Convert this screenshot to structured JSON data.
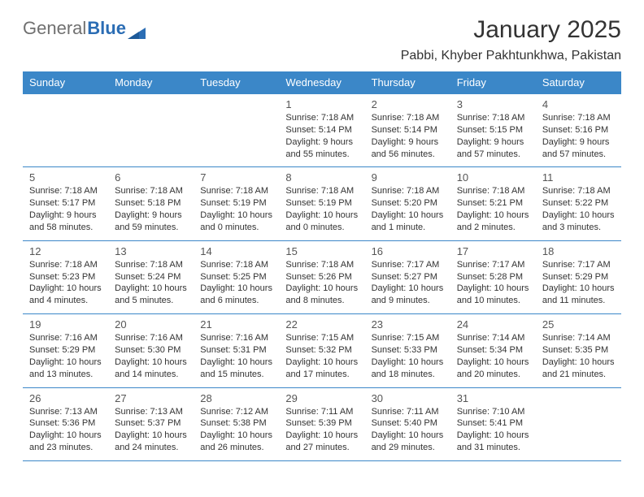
{
  "logo": {
    "text_left": "General",
    "text_right": "Blue"
  },
  "title": "January 2025",
  "subtitle": "Pabbi, Khyber Pakhtunkhwa, Pakistan",
  "colors": {
    "header_bg": "#3b87c8",
    "header_text": "#ffffff",
    "rule": "#3b87c8",
    "body_text": "#333333",
    "logo_gray": "#707070",
    "logo_blue": "#2b6db4",
    "background": "#ffffff"
  },
  "day_headers": [
    "Sunday",
    "Monday",
    "Tuesday",
    "Wednesday",
    "Thursday",
    "Friday",
    "Saturday"
  ],
  "weeks": [
    [
      null,
      null,
      null,
      {
        "n": "1",
        "sr": "Sunrise: 7:18 AM",
        "ss": "Sunset: 5:14 PM",
        "d1": "Daylight: 9 hours",
        "d2": "and 55 minutes."
      },
      {
        "n": "2",
        "sr": "Sunrise: 7:18 AM",
        "ss": "Sunset: 5:14 PM",
        "d1": "Daylight: 9 hours",
        "d2": "and 56 minutes."
      },
      {
        "n": "3",
        "sr": "Sunrise: 7:18 AM",
        "ss": "Sunset: 5:15 PM",
        "d1": "Daylight: 9 hours",
        "d2": "and 57 minutes."
      },
      {
        "n": "4",
        "sr": "Sunrise: 7:18 AM",
        "ss": "Sunset: 5:16 PM",
        "d1": "Daylight: 9 hours",
        "d2": "and 57 minutes."
      }
    ],
    [
      {
        "n": "5",
        "sr": "Sunrise: 7:18 AM",
        "ss": "Sunset: 5:17 PM",
        "d1": "Daylight: 9 hours",
        "d2": "and 58 minutes."
      },
      {
        "n": "6",
        "sr": "Sunrise: 7:18 AM",
        "ss": "Sunset: 5:18 PM",
        "d1": "Daylight: 9 hours",
        "d2": "and 59 minutes."
      },
      {
        "n": "7",
        "sr": "Sunrise: 7:18 AM",
        "ss": "Sunset: 5:19 PM",
        "d1": "Daylight: 10 hours",
        "d2": "and 0 minutes."
      },
      {
        "n": "8",
        "sr": "Sunrise: 7:18 AM",
        "ss": "Sunset: 5:19 PM",
        "d1": "Daylight: 10 hours",
        "d2": "and 0 minutes."
      },
      {
        "n": "9",
        "sr": "Sunrise: 7:18 AM",
        "ss": "Sunset: 5:20 PM",
        "d1": "Daylight: 10 hours",
        "d2": "and 1 minute."
      },
      {
        "n": "10",
        "sr": "Sunrise: 7:18 AM",
        "ss": "Sunset: 5:21 PM",
        "d1": "Daylight: 10 hours",
        "d2": "and 2 minutes."
      },
      {
        "n": "11",
        "sr": "Sunrise: 7:18 AM",
        "ss": "Sunset: 5:22 PM",
        "d1": "Daylight: 10 hours",
        "d2": "and 3 minutes."
      }
    ],
    [
      {
        "n": "12",
        "sr": "Sunrise: 7:18 AM",
        "ss": "Sunset: 5:23 PM",
        "d1": "Daylight: 10 hours",
        "d2": "and 4 minutes."
      },
      {
        "n": "13",
        "sr": "Sunrise: 7:18 AM",
        "ss": "Sunset: 5:24 PM",
        "d1": "Daylight: 10 hours",
        "d2": "and 5 minutes."
      },
      {
        "n": "14",
        "sr": "Sunrise: 7:18 AM",
        "ss": "Sunset: 5:25 PM",
        "d1": "Daylight: 10 hours",
        "d2": "and 6 minutes."
      },
      {
        "n": "15",
        "sr": "Sunrise: 7:18 AM",
        "ss": "Sunset: 5:26 PM",
        "d1": "Daylight: 10 hours",
        "d2": "and 8 minutes."
      },
      {
        "n": "16",
        "sr": "Sunrise: 7:17 AM",
        "ss": "Sunset: 5:27 PM",
        "d1": "Daylight: 10 hours",
        "d2": "and 9 minutes."
      },
      {
        "n": "17",
        "sr": "Sunrise: 7:17 AM",
        "ss": "Sunset: 5:28 PM",
        "d1": "Daylight: 10 hours",
        "d2": "and 10 minutes."
      },
      {
        "n": "18",
        "sr": "Sunrise: 7:17 AM",
        "ss": "Sunset: 5:29 PM",
        "d1": "Daylight: 10 hours",
        "d2": "and 11 minutes."
      }
    ],
    [
      {
        "n": "19",
        "sr": "Sunrise: 7:16 AM",
        "ss": "Sunset: 5:29 PM",
        "d1": "Daylight: 10 hours",
        "d2": "and 13 minutes."
      },
      {
        "n": "20",
        "sr": "Sunrise: 7:16 AM",
        "ss": "Sunset: 5:30 PM",
        "d1": "Daylight: 10 hours",
        "d2": "and 14 minutes."
      },
      {
        "n": "21",
        "sr": "Sunrise: 7:16 AM",
        "ss": "Sunset: 5:31 PM",
        "d1": "Daylight: 10 hours",
        "d2": "and 15 minutes."
      },
      {
        "n": "22",
        "sr": "Sunrise: 7:15 AM",
        "ss": "Sunset: 5:32 PM",
        "d1": "Daylight: 10 hours",
        "d2": "and 17 minutes."
      },
      {
        "n": "23",
        "sr": "Sunrise: 7:15 AM",
        "ss": "Sunset: 5:33 PM",
        "d1": "Daylight: 10 hours",
        "d2": "and 18 minutes."
      },
      {
        "n": "24",
        "sr": "Sunrise: 7:14 AM",
        "ss": "Sunset: 5:34 PM",
        "d1": "Daylight: 10 hours",
        "d2": "and 20 minutes."
      },
      {
        "n": "25",
        "sr": "Sunrise: 7:14 AM",
        "ss": "Sunset: 5:35 PM",
        "d1": "Daylight: 10 hours",
        "d2": "and 21 minutes."
      }
    ],
    [
      {
        "n": "26",
        "sr": "Sunrise: 7:13 AM",
        "ss": "Sunset: 5:36 PM",
        "d1": "Daylight: 10 hours",
        "d2": "and 23 minutes."
      },
      {
        "n": "27",
        "sr": "Sunrise: 7:13 AM",
        "ss": "Sunset: 5:37 PM",
        "d1": "Daylight: 10 hours",
        "d2": "and 24 minutes."
      },
      {
        "n": "28",
        "sr": "Sunrise: 7:12 AM",
        "ss": "Sunset: 5:38 PM",
        "d1": "Daylight: 10 hours",
        "d2": "and 26 minutes."
      },
      {
        "n": "29",
        "sr": "Sunrise: 7:11 AM",
        "ss": "Sunset: 5:39 PM",
        "d1": "Daylight: 10 hours",
        "d2": "and 27 minutes."
      },
      {
        "n": "30",
        "sr": "Sunrise: 7:11 AM",
        "ss": "Sunset: 5:40 PM",
        "d1": "Daylight: 10 hours",
        "d2": "and 29 minutes."
      },
      {
        "n": "31",
        "sr": "Sunrise: 7:10 AM",
        "ss": "Sunset: 5:41 PM",
        "d1": "Daylight: 10 hours",
        "d2": "and 31 minutes."
      },
      null
    ]
  ]
}
